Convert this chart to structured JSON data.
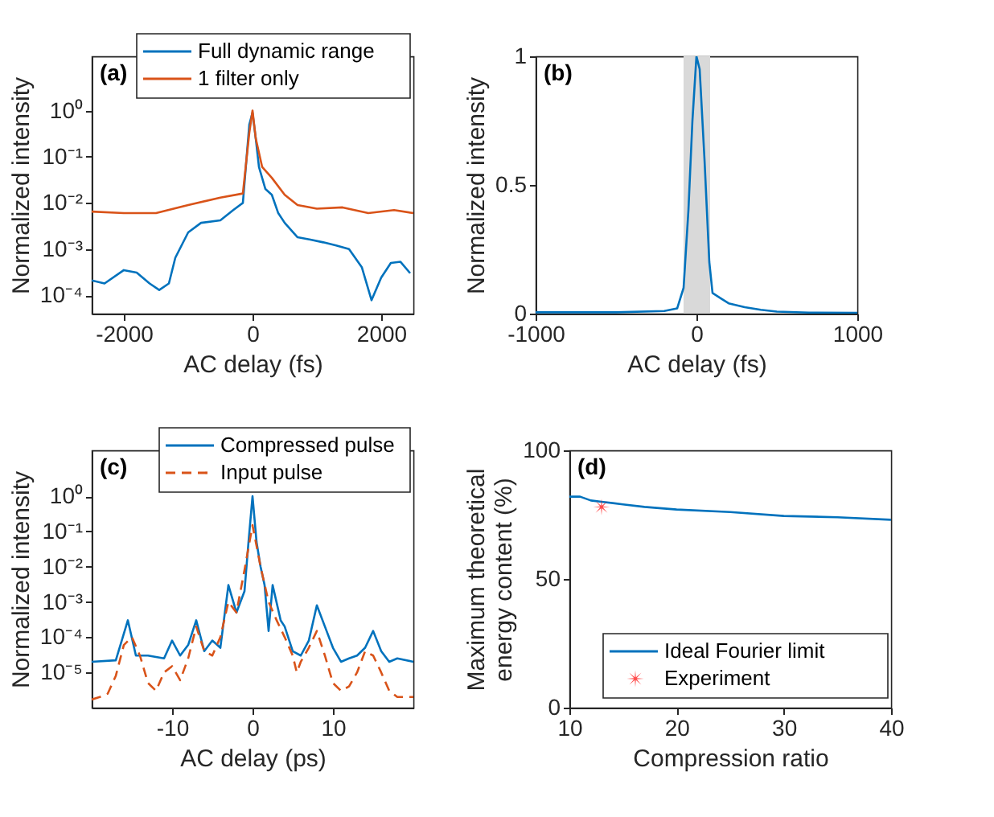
{
  "chart_data": [
    {
      "type": "line",
      "log": "y",
      "xlabel": "AC delay (fs)",
      "ylabel": "Normalized intensity",
      "annotations": [
        "(a)"
      ],
      "legend": "top right",
      "xlim": [
        -2500,
        2500
      ],
      "xticks": [
        -2000,
        0,
        2000
      ],
      "ylim": [
        4e-05,
        15
      ],
      "yticks": [
        {
          "value": 0.0001,
          "label": "10⁻⁴"
        },
        {
          "value": 0.001,
          "label": "10⁻³"
        },
        {
          "value": 0.01,
          "label": "10⁻²"
        },
        {
          "value": 0.1,
          "label": "10⁻¹"
        },
        {
          "value": 1,
          "label": "10⁰"
        }
      ],
      "series": [
        {
          "name": "Full dynamic range",
          "color": "#0072bd",
          "x": [
            -2500,
            -2300,
            -2000,
            -1800,
            -1600,
            -1450,
            -1300,
            -1200,
            -1000,
            -800,
            -500,
            -300,
            -150,
            -50,
            0,
            50,
            100,
            200,
            300,
            400,
            500,
            700,
            900,
            1100,
            1300,
            1500,
            1700,
            1850,
            2000,
            2150,
            2300,
            2450
          ],
          "values": [
            0.00021,
            0.00018,
            0.00035,
            0.00031,
            0.00018,
            0.00013,
            0.00018,
            0.00065,
            0.0023,
            0.0037,
            0.0042,
            0.007,
            0.01,
            0.5,
            0.9,
            0.25,
            0.06,
            0.02,
            0.015,
            0.006,
            0.0037,
            0.0018,
            0.0016,
            0.0014,
            0.0012,
            0.001,
            0.0004,
            7.8e-05,
            0.00024,
            0.0005,
            0.00053,
            0.0003
          ]
        },
        {
          "name": "1 filter only",
          "color": "#d95319",
          "x": [
            -2500,
            -2000,
            -1500,
            -1000,
            -500,
            -150,
            -50,
            0,
            50,
            150,
            300,
            500,
            700,
            1000,
            1400,
            1800,
            2200,
            2500
          ],
          "values": [
            0.0065,
            0.006,
            0.006,
            0.009,
            0.013,
            0.016,
            0.33,
            1,
            0.25,
            0.06,
            0.035,
            0.015,
            0.009,
            0.0075,
            0.008,
            0.006,
            0.007,
            0.006
          ]
        }
      ]
    },
    {
      "type": "line",
      "xlabel": "AC delay (fs)",
      "ylabel": "Normalized intensity",
      "annotations": [
        "(b)"
      ],
      "xlim": [
        -1000,
        1000
      ],
      "xticks": [
        -1000,
        0,
        1000
      ],
      "ylim": [
        0,
        1
      ],
      "yticks": [
        0,
        0.5,
        1
      ],
      "bands": [
        {
          "axis": "x",
          "from": -80,
          "to": 85,
          "color": "#d9d9d9"
        }
      ],
      "series": [
        {
          "color": "#0072bd",
          "x": [
            -1000,
            -500,
            -200,
            -120,
            -80,
            -50,
            -25,
            0,
            20,
            50,
            80,
            100,
            150,
            200,
            300,
            400,
            500,
            700,
            1000
          ],
          "values": [
            0.005,
            0.005,
            0.01,
            0.02,
            0.1,
            0.4,
            0.75,
            1,
            0.95,
            0.6,
            0.2,
            0.08,
            0.06,
            0.04,
            0.025,
            0.015,
            0.008,
            0.004,
            0.003
          ]
        }
      ]
    },
    {
      "type": "line",
      "log": "y",
      "xlabel": "AC delay (ps)",
      "ylabel": "Normalized intensity",
      "annotations": [
        "(c)"
      ],
      "legend": "top right",
      "xlim": [
        -20,
        20
      ],
      "xticks": [
        -10,
        0,
        10
      ],
      "ylim": [
        1e-06,
        20
      ],
      "yticks": [
        {
          "value": 1e-05,
          "label": "10⁻⁵"
        },
        {
          "value": 0.0001,
          "label": "10⁻⁴"
        },
        {
          "value": 0.001,
          "label": "10⁻³"
        },
        {
          "value": 0.01,
          "label": "10⁻²"
        },
        {
          "value": 0.1,
          "label": "10⁻¹"
        },
        {
          "value": 1,
          "label": "10⁰"
        }
      ],
      "series": [
        {
          "name": "Compressed pulse",
          "color": "#0072bd",
          "line_style": "solid",
          "x": [
            -20,
            -17,
            -15.5,
            -14.5,
            -13,
            -11,
            -10,
            -9,
            -8,
            -7,
            -6,
            -5,
            -4,
            -3,
            -2,
            -1,
            -0.5,
            0,
            0.5,
            1,
            1.5,
            2,
            2.5,
            3.5,
            4,
            5,
            6,
            7,
            8,
            9,
            10,
            11,
            12,
            13,
            14,
            15,
            16,
            17,
            18,
            20
          ],
          "values": [
            2e-05,
            2.2e-05,
            0.0003,
            3e-05,
            3e-05,
            2.5e-05,
            8e-05,
            3e-05,
            6e-05,
            0.0003,
            4e-05,
            8e-05,
            5e-05,
            0.003,
            0.0005,
            0.002,
            0.05,
            1,
            0.05,
            0.01,
            0.003,
            0.00015,
            0.003,
            0.0003,
            0.0002,
            4e-05,
            3e-05,
            8e-05,
            0.0008,
            0.0002,
            5e-05,
            2e-05,
            2.5e-05,
            3e-05,
            5e-05,
            0.00015,
            4e-05,
            2e-05,
            2.5e-05,
            2e-05
          ]
        },
        {
          "name": "Input pulse",
          "color": "#d95319",
          "line_style": "dashed",
          "x": [
            -20,
            -19,
            -18,
            -17,
            -16,
            -15,
            -14,
            -13,
            -12,
            -11,
            -10,
            -9,
            -8,
            -7,
            -6,
            -5,
            -4,
            -3,
            -2,
            -1,
            0,
            1,
            2,
            3,
            4,
            5,
            5.5,
            6,
            7,
            8,
            9,
            10,
            11,
            12,
            13,
            14,
            15,
            16,
            17,
            18,
            20
          ],
          "values": [
            1.7e-06,
            2e-06,
            2.5e-06,
            8e-06,
            6e-05,
            0.0001,
            3e-05,
            5e-06,
            3e-06,
            1e-05,
            1.5e-05,
            6e-06,
            2.5e-05,
            0.0002,
            4e-05,
            3e-05,
            0.0001,
            0.001,
            0.0005,
            0.008,
            0.15,
            0.01,
            0.001,
            0.0003,
            0.0001,
            3e-05,
            1e-05,
            2e-05,
            5e-05,
            0.00015,
            3e-05,
            5e-06,
            3e-06,
            4e-06,
            1e-05,
            4e-05,
            3e-05,
            1e-05,
            3e-06,
            2e-06,
            2e-06
          ]
        }
      ]
    },
    {
      "type": "line",
      "xlabel": "Compression ratio",
      "ylabel": "Maximum theoretical\nenergy content (%)",
      "annotations": [
        "(d)"
      ],
      "legend": "bottom right",
      "xlim": [
        10,
        40
      ],
      "xticks": [
        10,
        20,
        30,
        40
      ],
      "ylim": [
        0,
        100
      ],
      "yticks": [
        0,
        50,
        100
      ],
      "series": [
        {
          "name": "Ideal Fourier limit",
          "color": "#0072bd",
          "x": [
            10,
            11,
            12,
            13,
            15,
            17,
            20,
            25,
            30,
            35,
            40
          ],
          "values": [
            82,
            82,
            80.5,
            80,
            79,
            78,
            77,
            76,
            74.5,
            74,
            73
          ]
        },
        {
          "name": "Experiment",
          "type": "scatter",
          "marker": "star",
          "color": "#ff0000",
          "x": [
            13
          ],
          "values": [
            78
          ]
        }
      ]
    }
  ]
}
